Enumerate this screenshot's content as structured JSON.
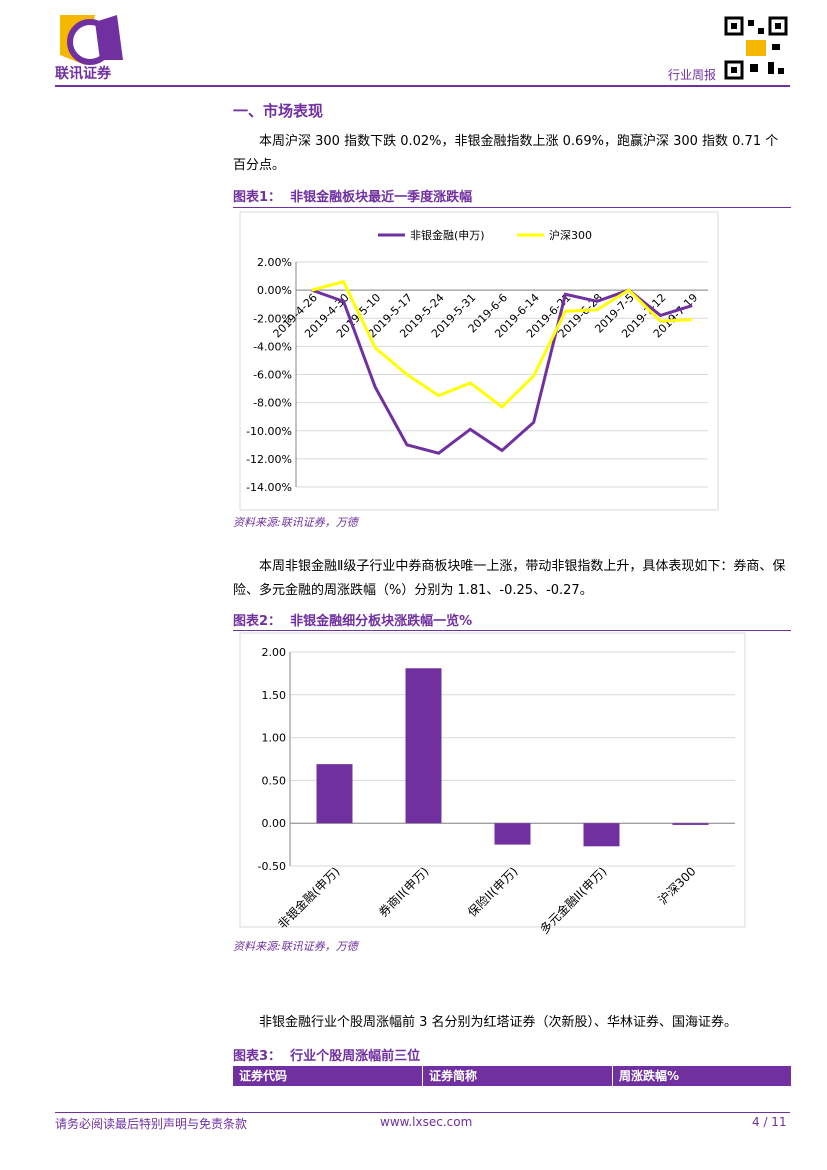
{
  "header": {
    "company": "联讯证券",
    "report_type": "行业周报"
  },
  "section_title": "一、市场表现",
  "paragraphs": [
    "本周沪深 300 指数下跌 0.02%，非银金融指数上涨 0.69%，跑赢沪深 300 指数 0.71 个百分点。",
    "本周非银金融Ⅱ级子行业中券商板块唯一上涨，带动非银指数上升，具体表现如下：券商、保险、多元金融的周涨跌幅（%）分别为 1.81、-0.25、-0.27。",
    "非银金融行业个股周涨幅前 3 名分别为红塔证券（次新股）、华林证券、国海证券。"
  ],
  "figures": [
    {
      "label": "图表1：",
      "title": "非银金融板块最近一季度涨跌幅",
      "source": "资料来源:联讯证券，万德"
    },
    {
      "label": "图表2：",
      "title": "非银金融细分板块涨跌幅一览%",
      "source": "资料来源:联讯证券，万德"
    },
    {
      "label": "图表3：",
      "title": "行业个股周涨幅前三位"
    }
  ],
  "table": {
    "columns": [
      "证券代码",
      "证券简称",
      "周涨跌幅%"
    ]
  },
  "footer": {
    "disclaimer": "请务必阅读最后特别声明与免责条款",
    "website": "www.lxsec.com",
    "page": "4 / 11"
  },
  "chart_data": [
    {
      "type": "line",
      "categories": [
        "2019-4-26",
        "2019-4-30",
        "2019-5-10",
        "2019-5-17",
        "2019-5-24",
        "2019-5-31",
        "2019-6-6",
        "2019-6-14",
        "2019-6-21",
        "2019-6-28",
        "2019-7-5",
        "2019-7-12",
        "2019-7-19"
      ],
      "series": [
        {
          "name": "非银金融(申万)",
          "color": "#7030a0",
          "values": [
            0,
            -0.8,
            -6.9,
            -11.0,
            -11.6,
            -9.9,
            -11.4,
            -9.4,
            -0.3,
            -0.8,
            0.0,
            -1.8,
            -1.1
          ]
        },
        {
          "name": "沪深300",
          "color": "#ffff00",
          "values": [
            0,
            0.6,
            -4.1,
            -6.0,
            -7.5,
            -6.6,
            -8.3,
            -6.1,
            -1.5,
            -1.4,
            0.0,
            -2.2,
            -2.1
          ]
        }
      ],
      "ylim": [
        -14,
        2
      ],
      "yticks": [
        {
          "value": 2,
          "label": "2.00%"
        },
        {
          "value": 0,
          "label": "0.00%"
        },
        {
          "value": -2,
          "label": "-2.00%"
        },
        {
          "value": -4,
          "label": "-4.00%"
        },
        {
          "value": -6,
          "label": "-6.00%"
        },
        {
          "value": -8,
          "label": "-8.00%"
        },
        {
          "value": -10,
          "label": "-10.00%"
        },
        {
          "value": -12,
          "label": "-12.00%"
        },
        {
          "value": -14,
          "label": "-14.00%"
        }
      ],
      "grid": true,
      "legend": "top"
    },
    {
      "type": "bar",
      "categories": [
        "非银金融(申万)",
        "券商II(申万)",
        "保险II(申万)",
        "多元金融II(申万)",
        "沪深300"
      ],
      "values": [
        0.69,
        1.81,
        -0.25,
        -0.27,
        -0.02
      ],
      "color": "#7030a0",
      "ylim": [
        -0.5,
        2
      ],
      "yticks": [
        {
          "value": 2,
          "label": "2.00"
        },
        {
          "value": 1.5,
          "label": "1.50"
        },
        {
          "value": 1,
          "label": "1.00"
        },
        {
          "value": 0.5,
          "label": "0.50"
        },
        {
          "value": 0,
          "label": "0.00"
        },
        {
          "value": -0.5,
          "label": "-0.50"
        }
      ],
      "grid": true
    }
  ]
}
